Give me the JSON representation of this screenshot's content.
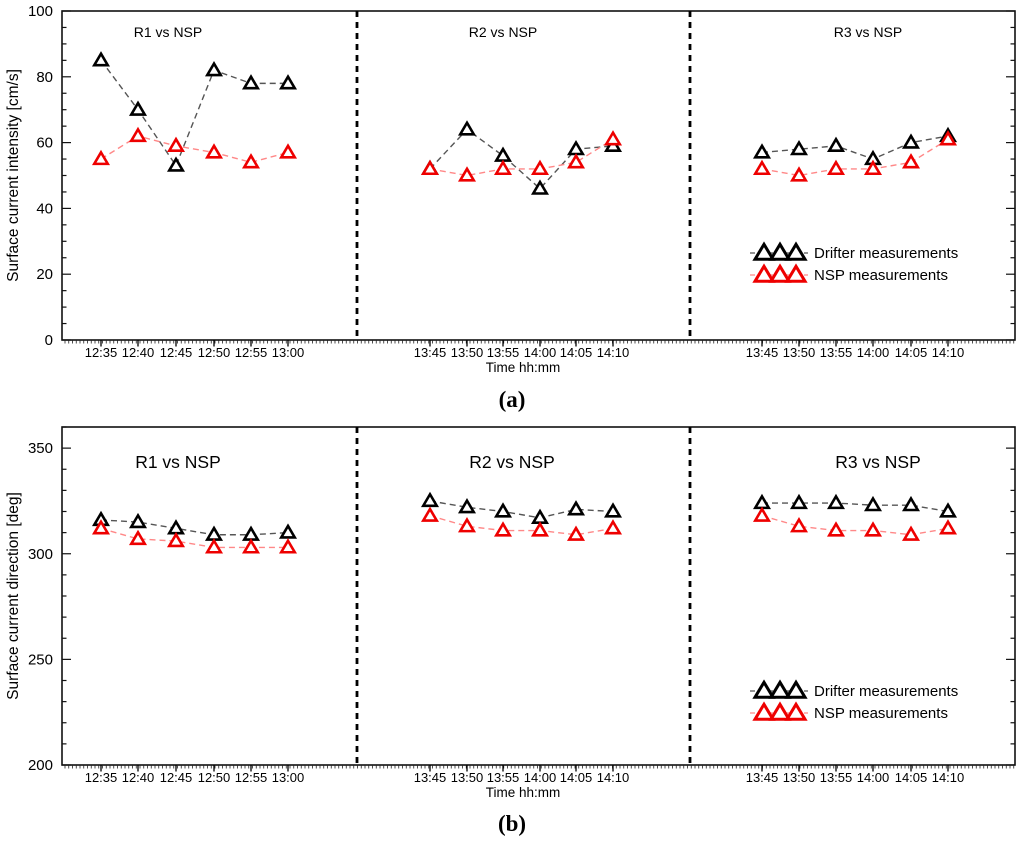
{
  "figure": {
    "description": "Two stacked panels comparing drifter and NSP surface current measurements in three regions (R1, R2, R3)",
    "background": "#ffffff"
  },
  "colors": {
    "drifter": "#000000",
    "nsp": "#ee0000",
    "drifter_dash": "#555555",
    "nsp_dash": "#ff8888",
    "axis": "#111111"
  },
  "legend": {
    "drifter_label": "Drifter measurements",
    "nsp_label": "NSP measurements"
  },
  "chart_data": [
    {
      "type": "scatter",
      "panel": "a",
      "caption": "(a)",
      "ylabel": "Surface current intensity [cm/s]",
      "xlabel": "Time hh:mm",
      "ylim": [
        0,
        100
      ],
      "yticks": [
        0,
        20,
        40,
        60,
        80,
        100
      ],
      "grid": false,
      "legend_position": "right-section-middle",
      "marker": "open-triangle",
      "line_style": "dashed",
      "sections": [
        {
          "title": "R1 vs NSP",
          "categories": [
            "12:35",
            "12:40",
            "12:45",
            "12:50",
            "12:55",
            "13:00"
          ],
          "series": [
            {
              "name": "Drifter measurements",
              "color": "#000000",
              "values": [
                85,
                70,
                53,
                82,
                78,
                78
              ]
            },
            {
              "name": "NSP measurements",
              "color": "#ee0000",
              "values": [
                55,
                62,
                59,
                57,
                54,
                57
              ]
            }
          ]
        },
        {
          "title": "R2 vs NSP",
          "categories": [
            "13:45",
            "13:50",
            "13:55",
            "14:00",
            "14:05",
            "14:10"
          ],
          "series": [
            {
              "name": "Drifter measurements",
              "color": "#000000",
              "values": [
                52,
                64,
                56,
                46,
                58,
                59
              ]
            },
            {
              "name": "NSP measurements",
              "color": "#ee0000",
              "values": [
                52,
                50,
                52,
                52,
                54,
                61
              ]
            }
          ]
        },
        {
          "title": "R3 vs NSP",
          "categories": [
            "13:45",
            "13:50",
            "13:55",
            "14:00",
            "14:05",
            "14:10"
          ],
          "series": [
            {
              "name": "Drifter measurements",
              "color": "#000000",
              "values": [
                57,
                58,
                59,
                55,
                60,
                62
              ]
            },
            {
              "name": "NSP measurements",
              "color": "#ee0000",
              "values": [
                52,
                50,
                52,
                52,
                54,
                61
              ]
            }
          ]
        }
      ]
    },
    {
      "type": "scatter",
      "panel": "b",
      "caption": "(b)",
      "ylabel": "Surface current direction [deg]",
      "xlabel": "Time hh:mm",
      "ylim": [
        200,
        360
      ],
      "yticks": [
        200,
        250,
        300,
        350
      ],
      "grid": false,
      "legend_position": "right-section-middle",
      "marker": "open-triangle",
      "line_style": "dashed",
      "sections": [
        {
          "title": "R1 vs NSP",
          "categories": [
            "12:35",
            "12:40",
            "12:45",
            "12:50",
            "12:55",
            "13:00"
          ],
          "series": [
            {
              "name": "Drifter measurements",
              "color": "#000000",
              "values": [
                316,
                315,
                312,
                309,
                309,
                310
              ]
            },
            {
              "name": "NSP measurements",
              "color": "#ee0000",
              "values": [
                312,
                307,
                306,
                303,
                303,
                303
              ]
            }
          ]
        },
        {
          "title": "R2 vs NSP",
          "categories": [
            "13:45",
            "13:50",
            "13:55",
            "14:00",
            "14:05",
            "14:10"
          ],
          "series": [
            {
              "name": "Drifter measurements",
              "color": "#000000",
              "values": [
                325,
                322,
                320,
                317,
                321,
                320
              ]
            },
            {
              "name": "NSP measurements",
              "color": "#ee0000",
              "values": [
                318,
                313,
                311,
                311,
                309,
                312
              ]
            }
          ]
        },
        {
          "title": "R3 vs NSP",
          "categories": [
            "13:45",
            "13:50",
            "13:55",
            "14:00",
            "14:05",
            "14:10"
          ],
          "series": [
            {
              "name": "Drifter measurements",
              "color": "#000000",
              "values": [
                324,
                324,
                324,
                323,
                323,
                320
              ]
            },
            {
              "name": "NSP measurements",
              "color": "#ee0000",
              "values": [
                318,
                313,
                311,
                311,
                309,
                312
              ]
            }
          ]
        }
      ]
    }
  ]
}
